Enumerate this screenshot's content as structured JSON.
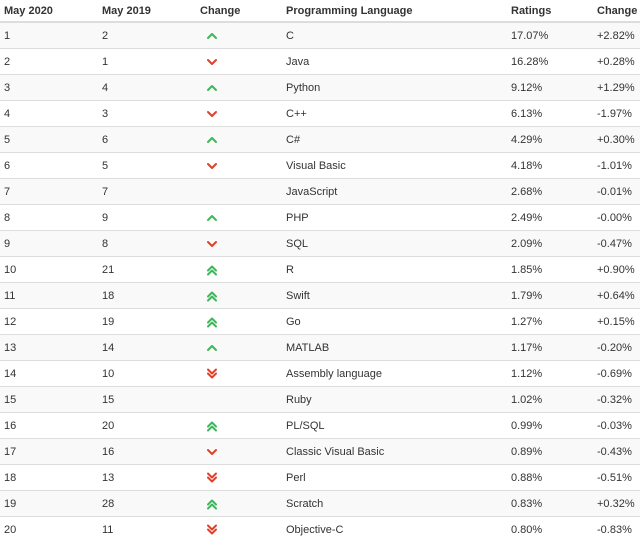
{
  "columns": {
    "may2020": "May 2020",
    "may2019": "May 2019",
    "change": "Change",
    "language": "Programming Language",
    "ratings": "Ratings",
    "rating_change": "Change"
  },
  "colors": {
    "up": "#3fb65b",
    "down": "#e0402a"
  },
  "rows": [
    {
      "may2020": "1",
      "may2019": "2",
      "trend": "up",
      "language": "C",
      "rating": "17.07%",
      "change": "+2.82%"
    },
    {
      "may2020": "2",
      "may2019": "1",
      "trend": "down",
      "language": "Java",
      "rating": "16.28%",
      "change": "+0.28%"
    },
    {
      "may2020": "3",
      "may2019": "4",
      "trend": "up",
      "language": "Python",
      "rating": "9.12%",
      "change": "+1.29%"
    },
    {
      "may2020": "4",
      "may2019": "3",
      "trend": "down",
      "language": "C++",
      "rating": "6.13%",
      "change": "-1.97%"
    },
    {
      "may2020": "5",
      "may2019": "6",
      "trend": "up",
      "language": "C#",
      "rating": "4.29%",
      "change": "+0.30%"
    },
    {
      "may2020": "6",
      "may2019": "5",
      "trend": "down",
      "language": "Visual Basic",
      "rating": "4.18%",
      "change": "-1.01%"
    },
    {
      "may2020": "7",
      "may2019": "7",
      "trend": "none",
      "language": "JavaScript",
      "rating": "2.68%",
      "change": "-0.01%"
    },
    {
      "may2020": "8",
      "may2019": "9",
      "trend": "up",
      "language": "PHP",
      "rating": "2.49%",
      "change": "-0.00%"
    },
    {
      "may2020": "9",
      "may2019": "8",
      "trend": "down",
      "language": "SQL",
      "rating": "2.09%",
      "change": "-0.47%"
    },
    {
      "may2020": "10",
      "may2019": "21",
      "trend": "up2",
      "language": "R",
      "rating": "1.85%",
      "change": "+0.90%"
    },
    {
      "may2020": "11",
      "may2019": "18",
      "trend": "up2",
      "language": "Swift",
      "rating": "1.79%",
      "change": "+0.64%"
    },
    {
      "may2020": "12",
      "may2019": "19",
      "trend": "up2",
      "language": "Go",
      "rating": "1.27%",
      "change": "+0.15%"
    },
    {
      "may2020": "13",
      "may2019": "14",
      "trend": "up",
      "language": "MATLAB",
      "rating": "1.17%",
      "change": "-0.20%"
    },
    {
      "may2020": "14",
      "may2019": "10",
      "trend": "down2",
      "language": "Assembly language",
      "rating": "1.12%",
      "change": "-0.69%"
    },
    {
      "may2020": "15",
      "may2019": "15",
      "trend": "none",
      "language": "Ruby",
      "rating": "1.02%",
      "change": "-0.32%"
    },
    {
      "may2020": "16",
      "may2019": "20",
      "trend": "up2",
      "language": "PL/SQL",
      "rating": "0.99%",
      "change": "-0.03%"
    },
    {
      "may2020": "17",
      "may2019": "16",
      "trend": "down",
      "language": "Classic Visual Basic",
      "rating": "0.89%",
      "change": "-0.43%"
    },
    {
      "may2020": "18",
      "may2019": "13",
      "trend": "down2",
      "language": "Perl",
      "rating": "0.88%",
      "change": "-0.51%"
    },
    {
      "may2020": "19",
      "may2019": "28",
      "trend": "up2",
      "language": "Scratch",
      "rating": "0.83%",
      "change": "+0.32%"
    },
    {
      "may2020": "20",
      "may2019": "11",
      "trend": "down2",
      "language": "Objective-C",
      "rating": "0.80%",
      "change": "-0.83%"
    }
  ]
}
